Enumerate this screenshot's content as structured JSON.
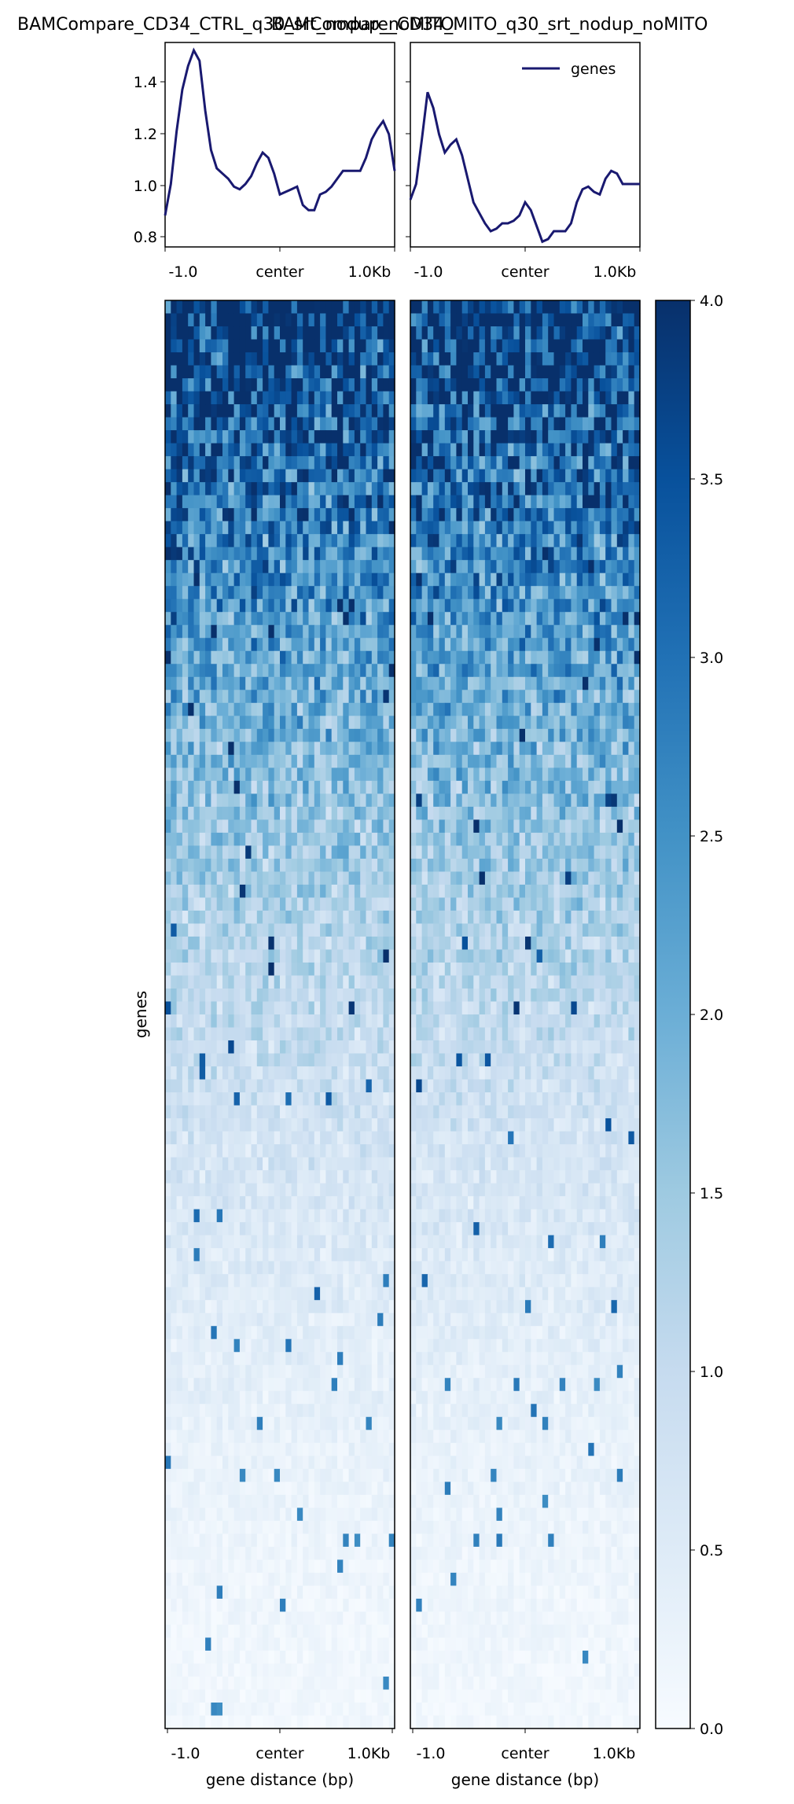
{
  "chart_data": [
    {
      "type": "line",
      "panel": "profile",
      "title": "BAMCompare_CD34_CTRL_q30_srt_nodup_noMITO",
      "x_tick_labels": [
        "-1.0",
        "center",
        "1.0Kb"
      ],
      "ylim": [
        0.76,
        1.54
      ],
      "y_ticks": [
        "0.8",
        "1.0",
        "1.2",
        "1.4"
      ],
      "series": [
        {
          "name": "genes",
          "color": "#191970",
          "x": [
            -1000,
            -950,
            -900,
            -850,
            -800,
            -750,
            -700,
            -650,
            -600,
            -550,
            -500,
            -450,
            -400,
            -350,
            -300,
            -250,
            -200,
            -150,
            -100,
            -50,
            0,
            50,
            100,
            150,
            200,
            250,
            300,
            350,
            400,
            450,
            500,
            550,
            600,
            650,
            700,
            750,
            800,
            850,
            900,
            950,
            1000
          ],
          "y": [
            0.88,
            1.0,
            1.2,
            1.36,
            1.45,
            1.51,
            1.47,
            1.28,
            1.13,
            1.06,
            1.04,
            1.02,
            0.99,
            0.98,
            1.0,
            1.03,
            1.08,
            1.12,
            1.1,
            1.04,
            0.96,
            0.97,
            0.98,
            0.99,
            0.92,
            0.9,
            0.9,
            0.96,
            0.97,
            0.99,
            1.02,
            1.05,
            1.05,
            1.05,
            1.05,
            1.1,
            1.17,
            1.21,
            1.24,
            1.19,
            1.05
          ]
        }
      ]
    },
    {
      "type": "line",
      "panel": "profile",
      "title": "BAMCompare_CD34_MITO_q30_srt_nodup_noMITO",
      "x_tick_labels": [
        "-1.0",
        "center",
        "1.0Kb"
      ],
      "ylim": [
        0.76,
        1.54
      ],
      "legend": {
        "position": "top-right",
        "entries": [
          "genes"
        ]
      },
      "series": [
        {
          "name": "genes",
          "color": "#191970",
          "x": [
            -1000,
            -950,
            -900,
            -850,
            -800,
            -750,
            -700,
            -650,
            -600,
            -550,
            -500,
            -450,
            -400,
            -350,
            -300,
            -250,
            -200,
            -150,
            -100,
            -50,
            0,
            50,
            100,
            150,
            200,
            250,
            300,
            350,
            400,
            450,
            500,
            550,
            600,
            650,
            700,
            750,
            800,
            850,
            900,
            950,
            1000
          ],
          "y": [
            0.94,
            1.0,
            1.17,
            1.35,
            1.29,
            1.19,
            1.12,
            1.15,
            1.17,
            1.11,
            1.02,
            0.93,
            0.89,
            0.85,
            0.82,
            0.83,
            0.85,
            0.85,
            0.86,
            0.88,
            0.93,
            0.9,
            0.84,
            0.78,
            0.79,
            0.82,
            0.82,
            0.82,
            0.85,
            0.93,
            0.98,
            0.99,
            0.97,
            0.96,
            1.02,
            1.05,
            1.04,
            1.0,
            1.0,
            1.0,
            1.0
          ]
        }
      ]
    },
    {
      "type": "heatmap",
      "panel": "heatmap",
      "title": "BAMCompare_CD34_CTRL_q30_srt_nodup_noMITO",
      "x_tick_labels": [
        "-1.0",
        "center",
        "1.0Kb"
      ],
      "xlabel": "gene distance (bp)",
      "ylabel": "genes",
      "rows": 110,
      "cols": 40,
      "value_range": [
        0,
        4
      ],
      "colormap": "Blues",
      "seed": 7
    },
    {
      "type": "heatmap",
      "panel": "heatmap",
      "title": "BAMCompare_CD34_MITO_q30_srt_nodup_noMITO",
      "x_tick_labels": [
        "-1.0",
        "center",
        "1.0Kb"
      ],
      "xlabel": "gene distance (bp)",
      "rows": 110,
      "cols": 40,
      "value_range": [
        0,
        4
      ],
      "colormap": "Blues",
      "seed": 13
    },
    {
      "type": "colorbar",
      "value_range": [
        0,
        4
      ],
      "tick_labels": [
        "0.0",
        "0.5",
        "1.0",
        "1.5",
        "2.0",
        "2.5",
        "3.0",
        "3.5",
        "4.0"
      ],
      "colormap": "Blues"
    }
  ]
}
